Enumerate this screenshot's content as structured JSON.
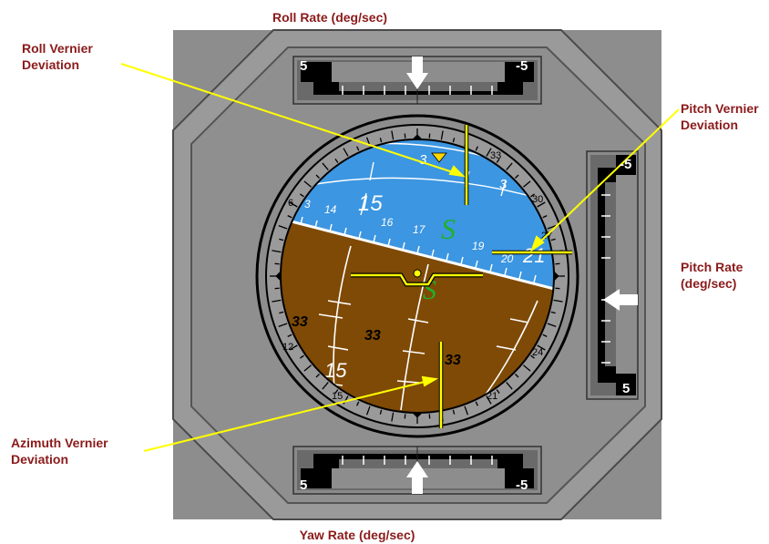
{
  "labels": {
    "roll_rate": "Roll Rate (deg/sec)",
    "yaw_rate": "Yaw Rate (deg/sec)",
    "roll_vernier": [
      "Roll Vernier",
      "Deviation"
    ],
    "pitch_vernier": [
      "Pitch Vernier",
      "Deviation"
    ],
    "pitch_rate": [
      "Pitch Rate",
      "(deg/sec)"
    ],
    "azimuth_vernier": [
      "Azimuth Vernier",
      "Deviation"
    ]
  },
  "roll_scale": {
    "left": "5",
    "right": "-5"
  },
  "yaw_scale": {
    "left": "5",
    "right": "-5"
  },
  "pitch_scale": {
    "top": "-5",
    "bottom": "5"
  },
  "adi": {
    "sky_marks": [
      "3",
      "15",
      "14",
      "16",
      "17",
      "19",
      "20",
      "21",
      "3",
      "3",
      "6",
      "33",
      "30",
      "27"
    ],
    "ground_marks": [
      "33",
      "33",
      "33",
      "15",
      "12",
      "15",
      "21",
      "24"
    ],
    "symbol": "S"
  },
  "colors": {
    "panel": "#8c8c8c",
    "bezel": "#a6a6a6",
    "sky": "#3c96e1",
    "ground": "#7f4a05",
    "needle": "#ffff00",
    "callout_text": "#8b1a1a"
  }
}
